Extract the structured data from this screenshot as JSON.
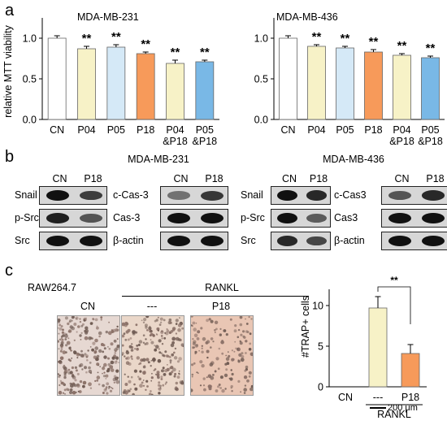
{
  "panels": {
    "a": "a",
    "b": "b",
    "c": "c"
  },
  "colors": {
    "white": "#ffffff",
    "cream": "#f7f2c7",
    "lightblue": "#d5e9f7",
    "orange": "#f79a5a",
    "blue": "#79b8e6",
    "errorbar": "#000000"
  },
  "chart_data": [
    {
      "type": "bar",
      "title": "MDA-MB-231",
      "ylabel": "relative MTT viability",
      "categories": [
        "CN",
        "P04",
        "P05",
        "P18",
        "P04\n&P18",
        "P05\n&P18"
      ],
      "values": [
        1.0,
        0.87,
        0.89,
        0.81,
        0.69,
        0.71
      ],
      "errors": [
        0.03,
        0.03,
        0.03,
        0.02,
        0.04,
        0.02
      ],
      "significance": [
        "",
        "**",
        "**",
        "**",
        "**",
        "**"
      ],
      "ylim": [
        0,
        1.25
      ],
      "yticks": [
        "0.0",
        "0.5",
        "1.0"
      ]
    },
    {
      "type": "bar",
      "title": "MDA-MB-436",
      "ylabel": "",
      "categories": [
        "CN",
        "P04",
        "P05",
        "P18",
        "P04\n&P18",
        "P05\n&P18"
      ],
      "values": [
        1.0,
        0.9,
        0.88,
        0.83,
        0.79,
        0.76
      ],
      "errors": [
        0.03,
        0.02,
        0.02,
        0.03,
        0.02,
        0.02
      ],
      "significance": [
        "",
        "**",
        "**",
        "**",
        "**",
        "**"
      ],
      "ylim": [
        0,
        1.25
      ],
      "yticks": [
        "0.0",
        "0.5",
        "1.0"
      ]
    },
    {
      "type": "bar",
      "title": "",
      "ylabel": "#TRAP+ cells",
      "categories": [
        "CN",
        "---",
        "P18"
      ],
      "values": [
        0,
        9.7,
        4.1
      ],
      "errors": [
        0,
        1.4,
        1.1
      ],
      "group_label": "RANKL",
      "significance_bracket": "**",
      "ylim": [
        0,
        12
      ],
      "yticks": [
        "0",
        "5",
        "10"
      ]
    }
  ],
  "blots": {
    "b231": {
      "title": "MDA-MB-231",
      "left": {
        "cols": [
          "CN",
          "P18"
        ],
        "rows": [
          "Snail",
          "p-Src",
          "Src"
        ]
      },
      "right": {
        "cols": [
          "CN",
          "P18"
        ],
        "rows": [
          "c-Cas-3",
          "Cas-3",
          "β-actin"
        ]
      }
    },
    "b436": {
      "title": "MDA-MB-436",
      "left": {
        "cols": [
          "CN",
          "P18"
        ],
        "rows": [
          "Snail",
          "p-Src",
          "Src"
        ]
      },
      "right": {
        "cols": [
          "CN",
          "P18"
        ],
        "rows": [
          "c-Cas3",
          "Cas3",
          "β-actin"
        ]
      }
    }
  },
  "micrographs": {
    "cell_line": "RAW264.7",
    "rankl": "RANKL",
    "labels": [
      "CN",
      "---",
      "P18"
    ],
    "scale": "200 μm"
  }
}
